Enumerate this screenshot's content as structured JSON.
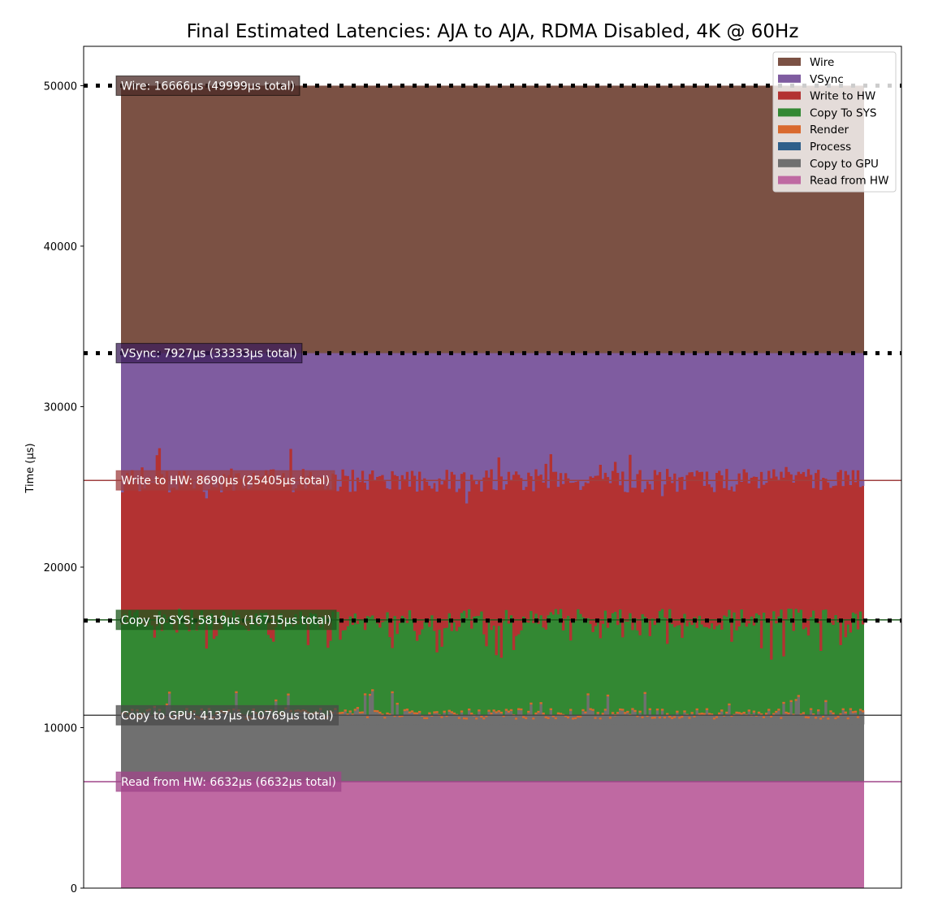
{
  "chart_data": {
    "type": "area",
    "stacked": true,
    "title": "Final Estimated Latencies: AJA to AJA, RDMA Disabled, 4K @ 60Hz",
    "xlabel": "",
    "ylabel": "Time (µs)",
    "ylim": [
      0,
      52450
    ],
    "yticks": [
      0,
      10000,
      20000,
      30000,
      40000,
      50000
    ],
    "grid": false,
    "legend_position": "top-right",
    "series": [
      {
        "name": "Read from HW",
        "color": "#bf69a2",
        "mean": 6632,
        "cumulative": 6632,
        "annotation": "Read from HW: 6632µs (6632µs total)",
        "line_color": "#a0468a"
      },
      {
        "name": "Copy to GPU",
        "color": "#707070",
        "mean": 4137,
        "cumulative": 10769,
        "annotation": "Copy to GPU: 4137µs (10769µs total)",
        "line_color": "#4a4a4a"
      },
      {
        "name": "Process",
        "color": "#2f5f8a"
      },
      {
        "name": "Render",
        "color": "#d9692e"
      },
      {
        "name": "Copy To SYS",
        "color": "#338833",
        "mean": 5819,
        "cumulative": 16715,
        "annotation": "Copy To SYS: 5819µs (16715µs total)",
        "line_color": "#1d5a1d"
      },
      {
        "name": "Write to HW",
        "color": "#b33232",
        "mean": 8690,
        "cumulative": 25405,
        "annotation": "Write to HW: 8690µs (25405µs total)",
        "line_color": "#a04040"
      },
      {
        "name": "VSync",
        "color": "#7f5ca0",
        "mean": 7927,
        "cumulative": 33333,
        "annotation": "VSync: 7927µs (33333µs total)",
        "line_color": "#000000"
      },
      {
        "name": "Wire",
        "color": "#7b5144",
        "mean": 16666,
        "cumulative": 49999,
        "annotation": "Wire: 16666µs (49999µs total)",
        "line_color": "#000000"
      }
    ],
    "frame_lines": [
      16667,
      33333,
      50000
    ]
  }
}
